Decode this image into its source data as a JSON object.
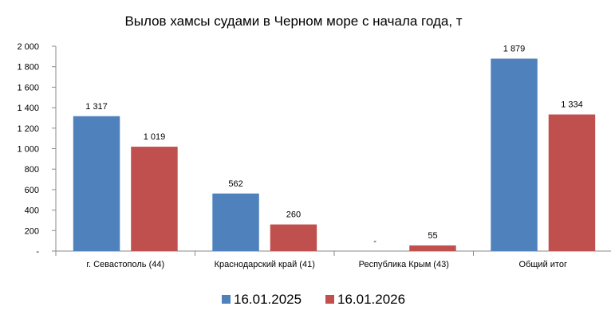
{
  "chart_data": {
    "type": "bar",
    "title": "Вылов хамсы судами в Черном море с начала  года, т",
    "xlabel": "",
    "ylabel": "",
    "ylim": [
      0,
      2000
    ],
    "yticks": [
      0,
      200,
      400,
      600,
      800,
      1000,
      1200,
      1400,
      1600,
      1800,
      2000
    ],
    "ytick_labels": [
      "-",
      "200",
      "400",
      "600",
      "800",
      "1 000",
      "1 200",
      "1 400",
      "1 600",
      "1 800",
      "2 000"
    ],
    "categories": [
      "г. Севастополь (44)",
      "Краснодарский край (41)",
      "Республика Крым (43)",
      "Общий итог"
    ],
    "series": [
      {
        "name": "16.01.2025",
        "color": "#4F81BD",
        "values": [
          1317,
          562,
          0,
          1879
        ],
        "labels": [
          "1 317",
          "562",
          "-",
          "1 879"
        ]
      },
      {
        "name": "16.01.2026",
        "color": "#C0504D",
        "values": [
          1019,
          260,
          55,
          1334
        ],
        "labels": [
          "1 019",
          "260",
          "55",
          "1 334"
        ]
      }
    ],
    "grid": false,
    "legend_position": "bottom"
  }
}
